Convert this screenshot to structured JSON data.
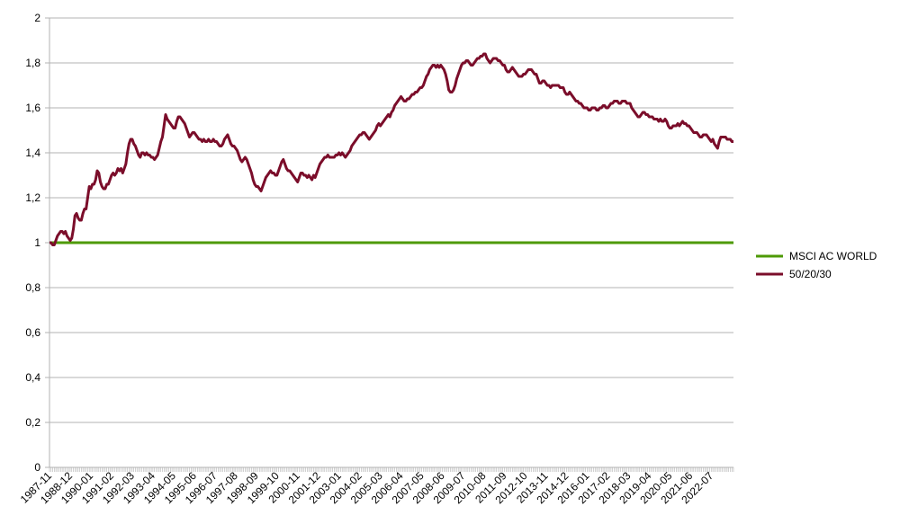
{
  "chart_data": {
    "type": "line",
    "categories": [
      "1987-11",
      null,
      null,
      null,
      null,
      null,
      null,
      null,
      null,
      null,
      null,
      null,
      null,
      "1988-12",
      null,
      null,
      null,
      null,
      null,
      null,
      null,
      null,
      null,
      null,
      null,
      null,
      "1990-01",
      null,
      null,
      null,
      null,
      null,
      null,
      null,
      null,
      null,
      null,
      null,
      null,
      "1991-02",
      null,
      null,
      null,
      null,
      null,
      null,
      null,
      null,
      null,
      null,
      null,
      null,
      "1992-03",
      null,
      null,
      null,
      null,
      null,
      null,
      null,
      null,
      null,
      null,
      null,
      null,
      "1993-04",
      null,
      null,
      null,
      null,
      null,
      null,
      null,
      null,
      null,
      null,
      null,
      null,
      "1994-05",
      null,
      null,
      null,
      null,
      null,
      null,
      null,
      null,
      null,
      null,
      null,
      null,
      "1995-06",
      null,
      null,
      null,
      null,
      null,
      null,
      null,
      null,
      null,
      null,
      null,
      null,
      "1996-07",
      null,
      null,
      null,
      null,
      null,
      null,
      null,
      null,
      null,
      null,
      null,
      null,
      "1997-08",
      null,
      null,
      null,
      null,
      null,
      null,
      null,
      null,
      null,
      null,
      null,
      null,
      "1998-09",
      null,
      null,
      null,
      null,
      null,
      null,
      null,
      null,
      null,
      null,
      null,
      null,
      "1999-10",
      null,
      null,
      null,
      null,
      null,
      null,
      null,
      null,
      null,
      null,
      null,
      null,
      "2000-11",
      null,
      null,
      null,
      null,
      null,
      null,
      null,
      null,
      null,
      null,
      null,
      null,
      "2001-12",
      null,
      null,
      null,
      null,
      null,
      null,
      null,
      null,
      null,
      null,
      null,
      null,
      "2003-01",
      null,
      null,
      null,
      null,
      null,
      null,
      null,
      null,
      null,
      null,
      null,
      null,
      "2004-02",
      null,
      null,
      null,
      null,
      null,
      null,
      null,
      null,
      null,
      null,
      null,
      null,
      "2005-03",
      null,
      null,
      null,
      null,
      null,
      null,
      null,
      null,
      null,
      null,
      null,
      null,
      "2006-04",
      null,
      null,
      null,
      null,
      null,
      null,
      null,
      null,
      null,
      null,
      null,
      null,
      "2007-05",
      null,
      null,
      null,
      null,
      null,
      null,
      null,
      null,
      null,
      null,
      null,
      null,
      "2008-06",
      null,
      null,
      null,
      null,
      null,
      null,
      null,
      null,
      null,
      null,
      null,
      null,
      "2009-07",
      null,
      null,
      null,
      null,
      null,
      null,
      null,
      null,
      null,
      null,
      null,
      null,
      "2010-08",
      null,
      null,
      null,
      null,
      null,
      null,
      null,
      null,
      null,
      null,
      null,
      null,
      "2011-09",
      null,
      null,
      null,
      null,
      null,
      null,
      null,
      null,
      null,
      null,
      null,
      null,
      "2012-10",
      null,
      null,
      null,
      null,
      null,
      null,
      null,
      null,
      null,
      null,
      null,
      null,
      "2013-11",
      null,
      null,
      null,
      null,
      null,
      null,
      null,
      null,
      null,
      null,
      null,
      null,
      "2014-12",
      null,
      null,
      null,
      null,
      null,
      null,
      null,
      null,
      null,
      null,
      null,
      null,
      "2016-01",
      null,
      null,
      null,
      null,
      null,
      null,
      null,
      null,
      null,
      null,
      null,
      null,
      "2017-02",
      null,
      null,
      null,
      null,
      null,
      null,
      null,
      null,
      null,
      null,
      null,
      null,
      "2018-03",
      null,
      null,
      null,
      null,
      null,
      null,
      null,
      null,
      null,
      null,
      null,
      null,
      "2019-04",
      null,
      null,
      null,
      null,
      null,
      null,
      null,
      null,
      null,
      null,
      null,
      null,
      "2020-05",
      null,
      null,
      null,
      null,
      null,
      null,
      null,
      null,
      null,
      null,
      null,
      null,
      "2021-06",
      null,
      null,
      null,
      null,
      null,
      null,
      null,
      null,
      null,
      null,
      null,
      null,
      "2022-07",
      null,
      null,
      null,
      null,
      null,
      null,
      null,
      null,
      null,
      null,
      null,
      null,
      null,
      null
    ],
    "series": [
      {
        "name": "MSCI AC WORLD",
        "color": "#4e9a06",
        "values": [
          1,
          1,
          1,
          1,
          1,
          1,
          1,
          1,
          1,
          1,
          1,
          1,
          1,
          1,
          1,
          1,
          1,
          1,
          1,
          1,
          1,
          1,
          1,
          1,
          1,
          1,
          1,
          1,
          1,
          1,
          1,
          1,
          1,
          1,
          1,
          1,
          1,
          1,
          1,
          1,
          1,
          1,
          1,
          1,
          1,
          1,
          1,
          1,
          1,
          1,
          1,
          1,
          1,
          1,
          1,
          1,
          1,
          1,
          1,
          1,
          1,
          1,
          1,
          1,
          1,
          1,
          1,
          1,
          1,
          1,
          1,
          1,
          1,
          1,
          1,
          1,
          1,
          1,
          1,
          1,
          1,
          1,
          1,
          1,
          1,
          1,
          1,
          1,
          1,
          1,
          1,
          1,
          1,
          1,
          1,
          1,
          1,
          1,
          1,
          1,
          1,
          1,
          1,
          1,
          1,
          1,
          1,
          1,
          1,
          1,
          1,
          1,
          1,
          1,
          1,
          1,
          1,
          1,
          1,
          1,
          1,
          1,
          1,
          1,
          1,
          1,
          1,
          1,
          1,
          1,
          1,
          1,
          1,
          1,
          1,
          1,
          1,
          1,
          1,
          1,
          1,
          1,
          1,
          1,
          1,
          1,
          1,
          1,
          1,
          1,
          1,
          1,
          1,
          1,
          1,
          1,
          1,
          1,
          1,
          1,
          1,
          1,
          1,
          1,
          1,
          1,
          1,
          1,
          1,
          1,
          1,
          1,
          1,
          1,
          1,
          1,
          1,
          1,
          1,
          1,
          1,
          1,
          1,
          1,
          1,
          1,
          1,
          1,
          1,
          1,
          1,
          1,
          1,
          1,
          1,
          1,
          1,
          1,
          1,
          1,
          1,
          1,
          1,
          1,
          1,
          1,
          1,
          1,
          1,
          1,
          1,
          1,
          1,
          1,
          1,
          1,
          1,
          1,
          1,
          1,
          1,
          1,
          1,
          1,
          1,
          1,
          1,
          1,
          1,
          1,
          1,
          1,
          1,
          1,
          1,
          1,
          1,
          1,
          1,
          1,
          1,
          1,
          1,
          1,
          1,
          1,
          1,
          1,
          1,
          1,
          1,
          1,
          1,
          1,
          1,
          1,
          1,
          1,
          1,
          1,
          1,
          1,
          1,
          1,
          1,
          1,
          1,
          1,
          1,
          1,
          1,
          1,
          1,
          1,
          1,
          1,
          1,
          1,
          1,
          1,
          1,
          1,
          1,
          1,
          1,
          1,
          1,
          1,
          1,
          1,
          1,
          1,
          1,
          1,
          1,
          1,
          1,
          1,
          1,
          1,
          1,
          1,
          1,
          1,
          1,
          1,
          1,
          1,
          1,
          1,
          1,
          1,
          1,
          1,
          1,
          1,
          1,
          1,
          1,
          1,
          1,
          1,
          1,
          1,
          1,
          1,
          1,
          1,
          1,
          1,
          1,
          1,
          1,
          1,
          1,
          1,
          1,
          1,
          1,
          1,
          1,
          1,
          1,
          1,
          1,
          1,
          1,
          1,
          1,
          1,
          1,
          1,
          1,
          1,
          1,
          1,
          1,
          1,
          1,
          1,
          1,
          1,
          1,
          1,
          1,
          1,
          1,
          1,
          1,
          1,
          1,
          1,
          1,
          1,
          1,
          1,
          1,
          1,
          1,
          1,
          1,
          1,
          1,
          1,
          1,
          1,
          1,
          1,
          1,
          1,
          1,
          1,
          1,
          1,
          1,
          1,
          1,
          1,
          1,
          1,
          1,
          1,
          1,
          1,
          1,
          1,
          1,
          1,
          1,
          1,
          1,
          1,
          1,
          1,
          1,
          1,
          1,
          1,
          1,
          1,
          1,
          1,
          1,
          1,
          1,
          1,
          1,
          1,
          1,
          1,
          1
        ]
      },
      {
        "name": "50/20/30",
        "color": "#7b0d2a",
        "values": [
          1.0,
          1.0,
          0.99,
          0.99,
          1.01,
          1.03,
          1.04,
          1.05,
          1.05,
          1.04,
          1.05,
          1.03,
          1.02,
          1.01,
          1.02,
          1.06,
          1.12,
          1.13,
          1.11,
          1.1,
          1.1,
          1.13,
          1.15,
          1.15,
          1.2,
          1.25,
          1.24,
          1.26,
          1.26,
          1.28,
          1.32,
          1.31,
          1.27,
          1.25,
          1.24,
          1.24,
          1.26,
          1.26,
          1.28,
          1.3,
          1.31,
          1.3,
          1.31,
          1.33,
          1.32,
          1.33,
          1.31,
          1.33,
          1.35,
          1.4,
          1.44,
          1.46,
          1.46,
          1.44,
          1.43,
          1.41,
          1.39,
          1.38,
          1.4,
          1.4,
          1.39,
          1.4,
          1.39,
          1.39,
          1.38,
          1.38,
          1.37,
          1.38,
          1.39,
          1.42,
          1.45,
          1.47,
          1.52,
          1.57,
          1.55,
          1.54,
          1.53,
          1.52,
          1.51,
          1.51,
          1.54,
          1.56,
          1.56,
          1.55,
          1.54,
          1.53,
          1.51,
          1.49,
          1.47,
          1.48,
          1.49,
          1.49,
          1.48,
          1.47,
          1.46,
          1.46,
          1.45,
          1.46,
          1.45,
          1.45,
          1.46,
          1.45,
          1.45,
          1.46,
          1.45,
          1.45,
          1.44,
          1.43,
          1.43,
          1.44,
          1.46,
          1.47,
          1.48,
          1.46,
          1.44,
          1.43,
          1.43,
          1.42,
          1.41,
          1.39,
          1.37,
          1.36,
          1.37,
          1.38,
          1.37,
          1.35,
          1.33,
          1.31,
          1.28,
          1.26,
          1.25,
          1.25,
          1.24,
          1.23,
          1.25,
          1.27,
          1.29,
          1.3,
          1.31,
          1.32,
          1.31,
          1.31,
          1.3,
          1.3,
          1.32,
          1.34,
          1.36,
          1.37,
          1.35,
          1.33,
          1.32,
          1.32,
          1.31,
          1.3,
          1.29,
          1.28,
          1.27,
          1.29,
          1.31,
          1.31,
          1.3,
          1.3,
          1.29,
          1.3,
          1.29,
          1.28,
          1.3,
          1.29,
          1.31,
          1.33,
          1.35,
          1.36,
          1.37,
          1.38,
          1.38,
          1.39,
          1.38,
          1.38,
          1.38,
          1.38,
          1.39,
          1.39,
          1.4,
          1.39,
          1.4,
          1.39,
          1.38,
          1.39,
          1.4,
          1.41,
          1.43,
          1.44,
          1.45,
          1.46,
          1.47,
          1.48,
          1.48,
          1.49,
          1.49,
          1.48,
          1.47,
          1.46,
          1.47,
          1.48,
          1.49,
          1.5,
          1.52,
          1.53,
          1.52,
          1.53,
          1.54,
          1.55,
          1.56,
          1.57,
          1.56,
          1.58,
          1.59,
          1.61,
          1.62,
          1.63,
          1.64,
          1.65,
          1.64,
          1.63,
          1.63,
          1.64,
          1.64,
          1.65,
          1.66,
          1.66,
          1.67,
          1.67,
          1.68,
          1.69,
          1.69,
          1.7,
          1.72,
          1.74,
          1.75,
          1.77,
          1.78,
          1.79,
          1.79,
          1.78,
          1.79,
          1.78,
          1.79,
          1.78,
          1.77,
          1.75,
          1.72,
          1.68,
          1.67,
          1.67,
          1.68,
          1.7,
          1.73,
          1.75,
          1.77,
          1.79,
          1.8,
          1.8,
          1.81,
          1.81,
          1.8,
          1.79,
          1.79,
          1.8,
          1.81,
          1.82,
          1.82,
          1.83,
          1.83,
          1.84,
          1.84,
          1.82,
          1.81,
          1.8,
          1.81,
          1.82,
          1.82,
          1.82,
          1.81,
          1.81,
          1.8,
          1.79,
          1.79,
          1.77,
          1.76,
          1.76,
          1.77,
          1.78,
          1.77,
          1.76,
          1.75,
          1.74,
          1.74,
          1.74,
          1.75,
          1.75,
          1.76,
          1.77,
          1.77,
          1.77,
          1.76,
          1.75,
          1.75,
          1.73,
          1.71,
          1.71,
          1.72,
          1.72,
          1.71,
          1.7,
          1.7,
          1.69,
          1.7,
          1.7,
          1.7,
          1.7,
          1.7,
          1.69,
          1.69,
          1.69,
          1.67,
          1.66,
          1.66,
          1.67,
          1.66,
          1.65,
          1.64,
          1.63,
          1.63,
          1.62,
          1.62,
          1.61,
          1.6,
          1.6,
          1.6,
          1.59,
          1.59,
          1.6,
          1.6,
          1.6,
          1.59,
          1.59,
          1.6,
          1.6,
          1.61,
          1.61,
          1.6,
          1.6,
          1.61,
          1.62,
          1.62,
          1.63,
          1.63,
          1.63,
          1.62,
          1.62,
          1.63,
          1.63,
          1.63,
          1.62,
          1.62,
          1.62,
          1.6,
          1.59,
          1.58,
          1.57,
          1.56,
          1.56,
          1.57,
          1.58,
          1.58,
          1.57,
          1.57,
          1.56,
          1.56,
          1.56,
          1.55,
          1.55,
          1.55,
          1.54,
          1.55,
          1.54,
          1.54,
          1.55,
          1.54,
          1.52,
          1.51,
          1.51,
          1.52,
          1.52,
          1.52,
          1.53,
          1.52,
          1.53,
          1.54,
          1.53,
          1.53,
          1.52,
          1.52,
          1.51,
          1.5,
          1.49,
          1.49,
          1.49,
          1.48,
          1.47,
          1.47,
          1.48,
          1.48,
          1.48,
          1.47,
          1.46,
          1.45,
          1.46,
          1.44,
          1.43,
          1.42,
          1.45,
          1.47,
          1.47,
          1.47,
          1.47,
          1.46,
          1.46,
          1.46,
          1.45,
          1.45
        ]
      }
    ],
    "ylim": [
      0,
      2
    ],
    "yticks": [
      0,
      {
        "value": 0.2,
        "label": "0,2"
      },
      {
        "value": 0.4,
        "label": "0,4"
      },
      {
        "value": 0.6,
        "label": "0,6"
      },
      {
        "value": 0.8,
        "label": "0,8"
      },
      1,
      {
        "value": 1.2,
        "label": "1,2"
      },
      {
        "value": 1.4,
        "label": "1,4"
      },
      {
        "value": 1.6,
        "label": "1,6"
      },
      {
        "value": 1.8,
        "label": "1,8"
      },
      2
    ],
    "grid": true,
    "legend": "right"
  }
}
